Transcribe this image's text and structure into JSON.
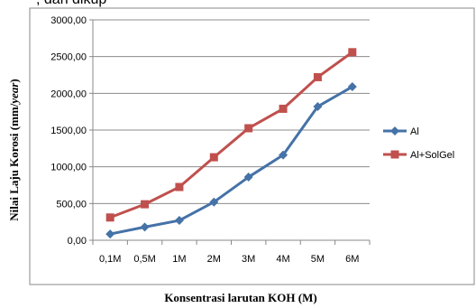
{
  "top_text": ", dan dikup",
  "chart_data": {
    "type": "line",
    "categories": [
      "0,1M",
      "0,5M",
      "1M",
      "2M",
      "3M",
      "4M",
      "5M",
      "6M"
    ],
    "series": [
      {
        "name": "Al",
        "color": "#4572A7",
        "marker": "diamond",
        "values": [
          85,
          180,
          270,
          520,
          860,
          1160,
          1820,
          2090
        ]
      },
      {
        "name": "Al+SolGel",
        "color": "#C0504D",
        "marker": "square",
        "values": [
          310,
          490,
          725,
          1130,
          1525,
          1790,
          2220,
          2560
        ]
      }
    ],
    "yticks": [
      "0,00",
      "500,00",
      "1000,00",
      "1500,00",
      "2000,00",
      "2500,00",
      "3000,00"
    ],
    "ylim": [
      0,
      3000
    ],
    "ylabel_parts": [
      "Nilai Laju Korosi (mm/",
      "year",
      ")"
    ],
    "xlabel": "Konsentrasi larutan KOH (M)",
    "legend_position": "right",
    "grid": "horizontal"
  }
}
